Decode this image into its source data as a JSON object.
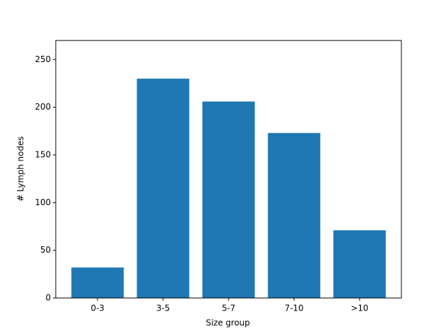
{
  "chart_data": {
    "type": "bar",
    "xlabel": "Size group",
    "ylabel": "# Lymph nodes",
    "categories": [
      "0-3",
      "3-5",
      "5-7",
      "7-10",
      ">10"
    ],
    "values": [
      32,
      230,
      206,
      173,
      71
    ],
    "color": "#1f77b4",
    "ylim": [
      0,
      270
    ],
    "yticks": [
      0,
      50,
      100,
      150,
      200,
      250
    ],
    "grid": false
  }
}
